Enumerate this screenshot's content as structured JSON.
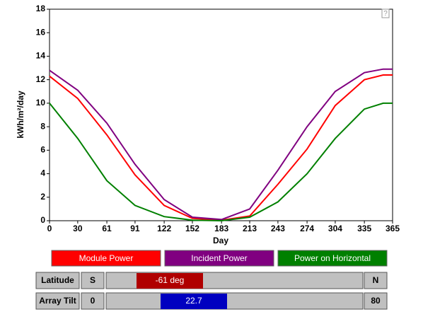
{
  "chart_data": {
    "type": "line",
    "x_label": "Day",
    "y_label": "kWh/m²/day",
    "help_icon": "?",
    "x": [
      0,
      30,
      61,
      91,
      122,
      152,
      183,
      213,
      243,
      274,
      304,
      335,
      355,
      365
    ],
    "series": [
      {
        "name": "Module Power",
        "color": "#ff0000",
        "values": [
          12.3,
          10.4,
          7.3,
          3.9,
          1.3,
          0.2,
          0.05,
          0.4,
          3.1,
          6.1,
          9.8,
          12.0,
          12.4,
          12.4
        ]
      },
      {
        "name": "Incident Power",
        "color": "#800080",
        "values": [
          12.8,
          11.1,
          8.3,
          4.8,
          1.8,
          0.3,
          0.1,
          1.0,
          4.3,
          8.0,
          11.0,
          12.6,
          12.9,
          12.9
        ]
      },
      {
        "name": "Power on Horizontal",
        "color": "#008000",
        "values": [
          10.0,
          7.0,
          3.4,
          1.3,
          0.35,
          0.05,
          0.0,
          0.3,
          1.6,
          4.0,
          7.0,
          9.5,
          10.0,
          10.0
        ]
      }
    ],
    "xlim": [
      0,
      365
    ],
    "xticks": [
      0,
      30,
      61,
      91,
      122,
      152,
      183,
      213,
      243,
      274,
      304,
      335,
      365
    ],
    "ylim": [
      0,
      18
    ],
    "yticks": [
      0,
      2,
      4,
      6,
      8,
      10,
      12,
      14,
      16,
      18
    ]
  },
  "controls": [
    {
      "label": "Latitude",
      "min_label": "S",
      "max_label": "N",
      "value_label": "-61 deg"
    },
    {
      "label": "Array Tilt",
      "min_label": "0",
      "max_label": "80",
      "value_label": "22.7"
    }
  ]
}
